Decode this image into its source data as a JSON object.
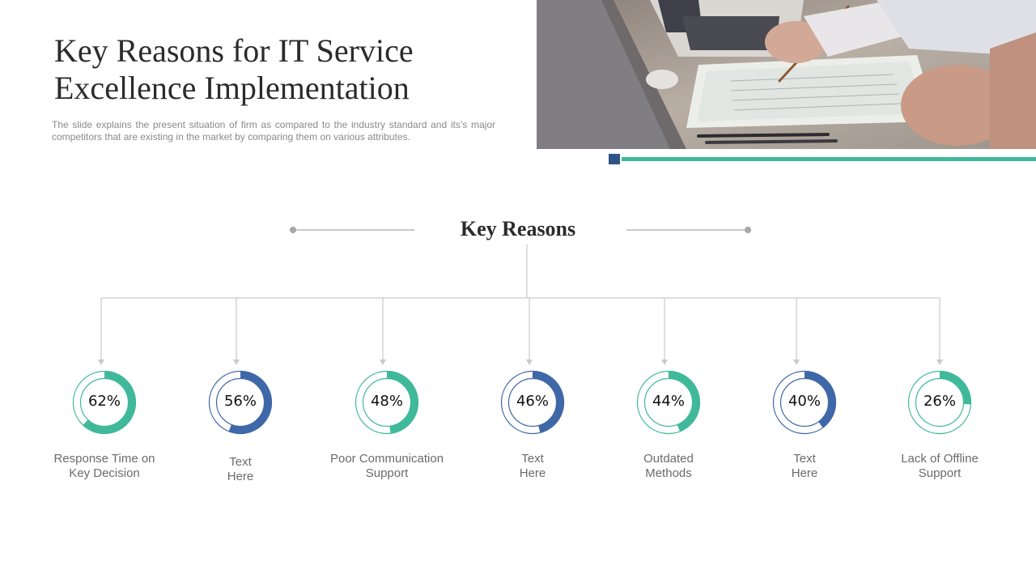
{
  "header": {
    "title": "Key Reasons for IT Service Excellence Implementation",
    "subtitle": "The slide explains the present situation of firm as compared to the industry standard and its’s major competitors that are existing in the market by comparing them on various attributes."
  },
  "photo": {
    "subject": "business-meeting-photo"
  },
  "diagram": {
    "heading": "Key Reasons",
    "colors": {
      "green": "#3fb99a",
      "blue": "#3f68a8",
      "connector": "#c9c9c9"
    },
    "items": [
      {
        "value": "62%",
        "percent": 62,
        "label_line1": "Response Time on",
        "label_line2": "Key Decision",
        "color": "green"
      },
      {
        "value": "56%",
        "percent": 56,
        "label_line1": "Text",
        "label_line2": "Here",
        "color": "blue"
      },
      {
        "value": "48%",
        "percent": 48,
        "label_line1": "Poor Communication",
        "label_line2": "Support",
        "color": "green"
      },
      {
        "value": "46%",
        "percent": 46,
        "label_line1": "Text",
        "label_line2": "Here",
        "color": "blue"
      },
      {
        "value": "44%",
        "percent": 44,
        "label_line1": "Outdated",
        "label_line2": "Methods",
        "color": "green"
      },
      {
        "value": "40%",
        "percent": 40,
        "label_line1": "Text",
        "label_line2": "Here",
        "color": "blue"
      },
      {
        "value": "26%",
        "percent": 26,
        "label_line1": "Lack of Offline",
        "label_line2": "Support",
        "color": "green"
      }
    ]
  }
}
